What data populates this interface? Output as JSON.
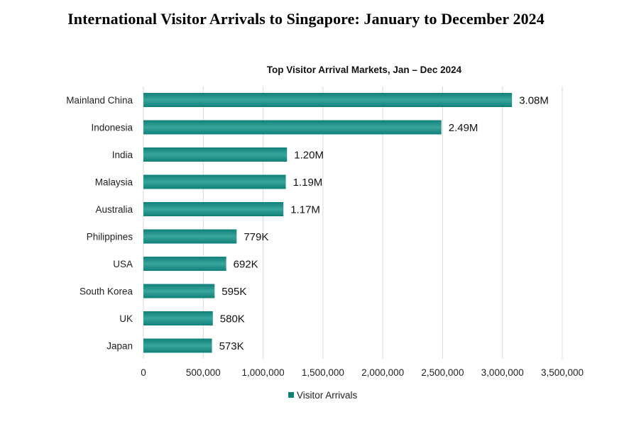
{
  "page": {
    "title": "International Visitor Arrivals to Singapore: January to December 2024"
  },
  "colors": {
    "bar": "#0e8078",
    "bar_highlight": "#3aa59c",
    "grid": "#d9d9d9"
  },
  "chart_data": {
    "type": "bar",
    "orientation": "horizontal",
    "title": "Top Visitor Arrival Markets, Jan – Dec 2024",
    "xlabel": "",
    "ylabel": "",
    "categories": [
      "Mainland China",
      "Indonesia",
      "India",
      "Malaysia",
      "Australia",
      "Philippines",
      "USA",
      "South Korea",
      "UK",
      "Japan"
    ],
    "series": [
      {
        "name": "Visitor Arrivals",
        "values": [
          3080000,
          2490000,
          1200000,
          1190000,
          1170000,
          779000,
          692000,
          595000,
          580000,
          573000
        ],
        "data_labels": [
          "3.08M",
          "2.49M",
          "1.20M",
          "1.19M",
          "1.17M",
          "779K",
          "692K",
          "595K",
          "580K",
          "573K"
        ]
      }
    ],
    "xlim": [
      0,
      3500000
    ],
    "x_ticks": [
      0,
      500000,
      1000000,
      1500000,
      2000000,
      2500000,
      3000000,
      3500000
    ],
    "x_tick_labels": [
      "0",
      "500,000",
      "1,000,000",
      "1,500,000",
      "2,000,000",
      "2,500,000",
      "3,000,000",
      "3,500,000"
    ],
    "grid": "vertical",
    "legend": {
      "position": "bottom",
      "entries": [
        "Visitor Arrivals"
      ]
    }
  }
}
